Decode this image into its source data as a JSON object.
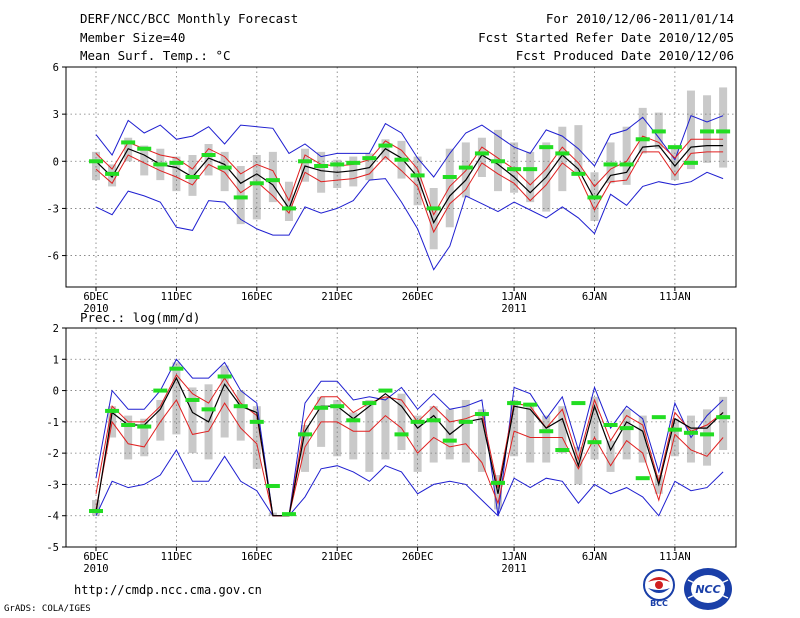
{
  "header": {
    "title": "DERF/NCC/BCC Monthly Forecast",
    "member_size": "Member Size=40",
    "variable": "Mean Surf. Temp.: °C",
    "forecast_range": "For 2010/12/06-2011/01/14",
    "started": "Fcst Started Refer Date 2010/12/05",
    "produced": "Fcst Produced Date 2010/12/06"
  },
  "footer": {
    "url": "http://cmdp.ncc.cma.gov.cn",
    "credit": "GrADS: COLA/IGES",
    "logo_bcc": "BCC",
    "logo_ncc": "NCC"
  },
  "colors": {
    "envelope": "#1f1fd0",
    "member_band": "#e02020",
    "ensemble_mean": "#000000",
    "observed_mark": "#22dd22",
    "box": "#c9c9c9",
    "grid": "#7a7a7a"
  },
  "chart_data": [
    {
      "type": "line",
      "title": "Mean Surf. Temp.: °C",
      "x_tick_labels": [
        "6DEC",
        "11DEC",
        "16DEC",
        "21DEC",
        "26DEC",
        "1JAN",
        "6JAN",
        "11JAN"
      ],
      "x_tick_sublabels": [
        "2010",
        "",
        "",
        "",
        "",
        "2011",
        "",
        ""
      ],
      "x_tick_day_index": [
        0,
        5,
        10,
        15,
        20,
        26,
        31,
        36
      ],
      "n_days": 40,
      "ylim": [
        -8,
        6
      ],
      "yticks": [
        6,
        3,
        0,
        -3,
        -6
      ],
      "series": [
        {
          "name": "max",
          "values": [
            1.7,
            0.4,
            2.6,
            1.8,
            2.3,
            1.4,
            1.6,
            2.2,
            1.1,
            2.3,
            2.2,
            2.1,
            0.5,
            1.1,
            0.3,
            0.5,
            0.5,
            0.5,
            2.4,
            1.8,
            0.2,
            -1.0,
            0.5,
            1.8,
            2.3,
            1.6,
            0.9,
            0.5,
            2.0,
            1.6,
            0.8,
            -0.3,
            1.7,
            2.0,
            2.8,
            1.5,
            0.1,
            2.9,
            2.5,
            2.9
          ]
        },
        {
          "name": "upper",
          "values": [
            0.5,
            -0.5,
            1.2,
            0.8,
            0.4,
            0.2,
            -0.5,
            0.8,
            0.3,
            -0.8,
            -0.2,
            -0.6,
            -2.5,
            0.4,
            -0.2,
            -0.3,
            -0.2,
            0.1,
            1.3,
            0.7,
            -0.5,
            -3.4,
            -1.6,
            -0.6,
            0.9,
            0.2,
            -0.5,
            -1.5,
            -0.5,
            0.9,
            -0.1,
            -1.6,
            -0.5,
            0.0,
            1.6,
            1.2,
            0.2,
            1.4,
            1.4,
            1.4
          ]
        },
        {
          "name": "mean",
          "values": [
            0.0,
            -1.0,
            0.8,
            0.4,
            -0.2,
            -0.4,
            -1.0,
            0.2,
            -0.2,
            -1.4,
            -0.8,
            -1.5,
            -3.0,
            -0.3,
            -0.6,
            -0.7,
            -0.6,
            -0.4,
            0.8,
            0.2,
            -1.0,
            -3.9,
            -2.2,
            -1.2,
            0.4,
            -0.2,
            -1.0,
            -2.0,
            -1.0,
            0.4,
            -0.5,
            -2.4,
            -0.9,
            -0.7,
            0.9,
            1.0,
            -0.3,
            0.9,
            1.0,
            1.0
          ]
        },
        {
          "name": "lower",
          "values": [
            -0.5,
            -1.4,
            0.4,
            -0.1,
            -0.6,
            -1.0,
            -1.5,
            -0.2,
            -0.7,
            -2.0,
            -1.3,
            -2.2,
            -3.3,
            -0.7,
            -1.3,
            -1.2,
            -1.1,
            -0.8,
            0.3,
            -0.6,
            -1.6,
            -4.5,
            -2.7,
            -1.8,
            -0.1,
            -0.8,
            -1.4,
            -2.5,
            -1.5,
            -0.1,
            -0.9,
            -3.1,
            -1.3,
            -1.2,
            0.6,
            0.6,
            -0.9,
            0.5,
            0.6,
            0.6
          ]
        },
        {
          "name": "min",
          "values": [
            -2.9,
            -3.4,
            -1.9,
            -2.2,
            -2.6,
            -4.2,
            -4.4,
            -2.5,
            -2.6,
            -3.7,
            -4.3,
            -4.7,
            -4.7,
            -2.9,
            -3.3,
            -3.0,
            -2.5,
            -1.2,
            -1.1,
            -2.6,
            -4.3,
            -6.9,
            -5.4,
            -2.2,
            -2.7,
            -3.2,
            -2.6,
            -3.1,
            -3.6,
            -2.9,
            -3.6,
            -4.6,
            -2.1,
            -2.8,
            -1.6,
            -1.3,
            -1.5,
            -1.3,
            -0.7,
            -1.1
          ]
        },
        {
          "name": "box_top",
          "values": [
            0.6,
            -0.2,
            1.5,
            1.0,
            0.8,
            0.3,
            0.4,
            1.1,
            0.6,
            -0.3,
            0.4,
            0.6,
            -1.3,
            0.8,
            0.6,
            0.1,
            0.3,
            0.5,
            1.4,
            1.3,
            0.3,
            -1.7,
            0.8,
            1.2,
            1.5,
            2.0,
            1.2,
            0.6,
            1.2,
            2.2,
            2.3,
            -0.7,
            1.2,
            2.2,
            3.4,
            3.1,
            0.9,
            4.5,
            4.2,
            4.7
          ]
        },
        {
          "name": "box_bottom",
          "values": [
            -1.2,
            -1.6,
            0.0,
            -0.9,
            -1.2,
            -1.9,
            -2.2,
            -0.9,
            -1.9,
            -4.0,
            -3.7,
            -2.6,
            -3.8,
            -1.3,
            -2.0,
            -1.7,
            -1.6,
            -1.2,
            0.1,
            -1.1,
            -2.8,
            -5.6,
            -4.2,
            -2.3,
            -1.0,
            -1.9,
            -2.0,
            -2.6,
            -3.2,
            -1.9,
            -0.9,
            -3.8,
            -1.4,
            -1.5,
            0.5,
            0.8,
            -1.2,
            -0.5,
            -0.1,
            -0.4
          ]
        },
        {
          "name": "observed",
          "values": [
            0.0,
            -0.8,
            1.2,
            0.8,
            -0.2,
            -0.1,
            -1.0,
            0.4,
            -0.4,
            -2.3,
            -1.4,
            -1.2,
            -3.0,
            0.0,
            -0.3,
            -0.2,
            -0.1,
            0.2,
            1.0,
            0.1,
            -0.9,
            -3.0,
            -1.0,
            -0.4,
            0.5,
            0.0,
            -0.5,
            -0.5,
            0.9,
            0.5,
            -0.8,
            -2.3,
            -0.2,
            -0.2,
            1.4,
            1.9,
            0.9,
            -0.1,
            1.9,
            1.9
          ]
        }
      ]
    },
    {
      "type": "line",
      "title": "Prec.: log(mm/d)",
      "x_tick_labels": [
        "6DEC",
        "11DEC",
        "16DEC",
        "21DEC",
        "26DEC",
        "1JAN",
        "6JAN",
        "11JAN"
      ],
      "x_tick_sublabels": [
        "2010",
        "",
        "",
        "",
        "",
        "2011",
        "",
        ""
      ],
      "x_tick_day_index": [
        0,
        5,
        10,
        15,
        20,
        26,
        31,
        36
      ],
      "n_days": 40,
      "ylim": [
        -5,
        2
      ],
      "yticks": [
        2,
        1,
        0,
        -1,
        -2,
        -3,
        -4,
        -5
      ],
      "series": [
        {
          "name": "max",
          "values": [
            -2.8,
            0.0,
            -0.6,
            -0.6,
            0.0,
            1.0,
            0.4,
            0.4,
            0.9,
            0.0,
            -0.4,
            -4.0,
            -4.0,
            -0.4,
            0.3,
            0.3,
            -0.3,
            -0.2,
            -0.3,
            0.1,
            -0.6,
            -0.1,
            -0.6,
            -0.5,
            -0.3,
            -4.0,
            0.1,
            -0.1,
            -0.9,
            -0.2,
            -1.9,
            0.1,
            -1.2,
            -0.5,
            -0.9,
            -2.6,
            -0.4,
            -1.5,
            -0.8,
            -0.3
          ]
        },
        {
          "name": "upper",
          "values": [
            -3.3,
            -0.5,
            -1.0,
            -1.0,
            -0.5,
            0.5,
            -0.1,
            -0.4,
            0.4,
            -0.4,
            -0.8,
            -4.0,
            -4.0,
            -1.0,
            -0.2,
            -0.2,
            -0.7,
            -0.4,
            -0.2,
            -0.3,
            -1.0,
            -0.5,
            -1.0,
            -0.9,
            -0.7,
            -3.1,
            -0.4,
            -0.5,
            -1.2,
            -0.6,
            -2.2,
            -0.3,
            -1.6,
            -0.8,
            -1.1,
            -2.9,
            -0.7,
            -1.3,
            -1.1,
            -0.7
          ]
        },
        {
          "name": "mean",
          "values": [
            -3.9,
            -0.7,
            -1.1,
            -1.1,
            -0.6,
            0.4,
            -0.7,
            -1.0,
            0.2,
            -0.5,
            -0.7,
            -4.0,
            -4.0,
            -1.3,
            -0.5,
            -0.5,
            -0.9,
            -0.5,
            -0.1,
            -0.5,
            -1.2,
            -0.8,
            -1.4,
            -1.0,
            -0.9,
            -3.3,
            -0.5,
            -0.6,
            -1.2,
            -0.9,
            -2.4,
            -0.5,
            -1.9,
            -1.0,
            -1.3,
            -3.0,
            -0.9,
            -1.2,
            -1.2,
            -0.7
          ]
        },
        {
          "name": "lower",
          "values": [
            -3.8,
            -1.0,
            -1.7,
            -1.8,
            -1.0,
            -0.3,
            -1.4,
            -1.3,
            -0.4,
            -1.2,
            -1.7,
            -4.0,
            -4.0,
            -1.8,
            -1.0,
            -1.0,
            -1.3,
            -1.3,
            -0.8,
            -1.2,
            -2.0,
            -1.5,
            -1.8,
            -1.7,
            -2.3,
            -3.6,
            -1.3,
            -1.5,
            -1.5,
            -1.5,
            -2.5,
            -1.5,
            -2.4,
            -1.6,
            -2.0,
            -3.5,
            -1.4,
            -1.9,
            -2.1,
            -1.5
          ]
        },
        {
          "name": "min",
          "values": [
            -4.0,
            -2.9,
            -3.1,
            -3.0,
            -2.7,
            -1.9,
            -2.9,
            -2.9,
            -2.1,
            -2.9,
            -3.2,
            -4.0,
            -4.0,
            -3.4,
            -2.5,
            -2.4,
            -2.6,
            -2.9,
            -2.4,
            -2.6,
            -3.3,
            -3.0,
            -2.9,
            -3.0,
            -3.5,
            -4.0,
            -2.8,
            -3.1,
            -2.8,
            -2.9,
            -3.6,
            -3.0,
            -3.3,
            -3.1,
            -3.4,
            -4.0,
            -2.9,
            -3.2,
            -3.1,
            -2.6
          ]
        },
        {
          "name": "box_top",
          "values": [
            -3.5,
            -0.5,
            -0.8,
            -0.9,
            -0.3,
            0.9,
            0.1,
            0.2,
            0.8,
            0.0,
            -0.5,
            -3.9,
            -3.9,
            -1.1,
            -0.2,
            -0.3,
            -0.7,
            -0.3,
            -0.2,
            -0.1,
            -0.8,
            -0.5,
            -0.6,
            -0.3,
            -0.6,
            -2.7,
            -0.3,
            -0.5,
            -0.8,
            -0.5,
            -1.8,
            -0.2,
            -1.6,
            -0.6,
            -0.8,
            -2.7,
            -0.9,
            -0.8,
            -0.6,
            -0.2
          ]
        },
        {
          "name": "box_bottom",
          "values": [
            -4.0,
            -1.5,
            -2.2,
            -2.1,
            -1.6,
            -1.4,
            -2.0,
            -2.2,
            -1.5,
            -1.6,
            -2.5,
            -4.0,
            -4.0,
            -2.6,
            -1.8,
            -2.1,
            -2.2,
            -2.6,
            -2.2,
            -1.9,
            -2.6,
            -2.3,
            -2.2,
            -2.3,
            -2.6,
            -3.8,
            -2.1,
            -2.3,
            -2.3,
            -2.0,
            -3.0,
            -2.2,
            -2.6,
            -2.2,
            -2.3,
            -3.3,
            -2.1,
            -2.3,
            -2.4,
            -1.9
          ]
        },
        {
          "name": "observed",
          "values": [
            -3.85,
            -0.65,
            -1.1,
            -1.15,
            0.0,
            0.7,
            -0.3,
            -0.6,
            0.45,
            -0.5,
            -1.0,
            -3.05,
            -3.95,
            -1.4,
            -0.55,
            -0.5,
            -0.95,
            -0.4,
            0.0,
            -1.4,
            -1.0,
            -0.95,
            -1.6,
            -1.0,
            -0.75,
            -2.95,
            -0.4,
            -0.45,
            -1.3,
            -1.9,
            -0.4,
            -1.65,
            -1.1,
            -1.2,
            -2.8,
            -0.85,
            -1.25,
            -1.35,
            -1.4,
            -0.85
          ]
        }
      ]
    }
  ]
}
